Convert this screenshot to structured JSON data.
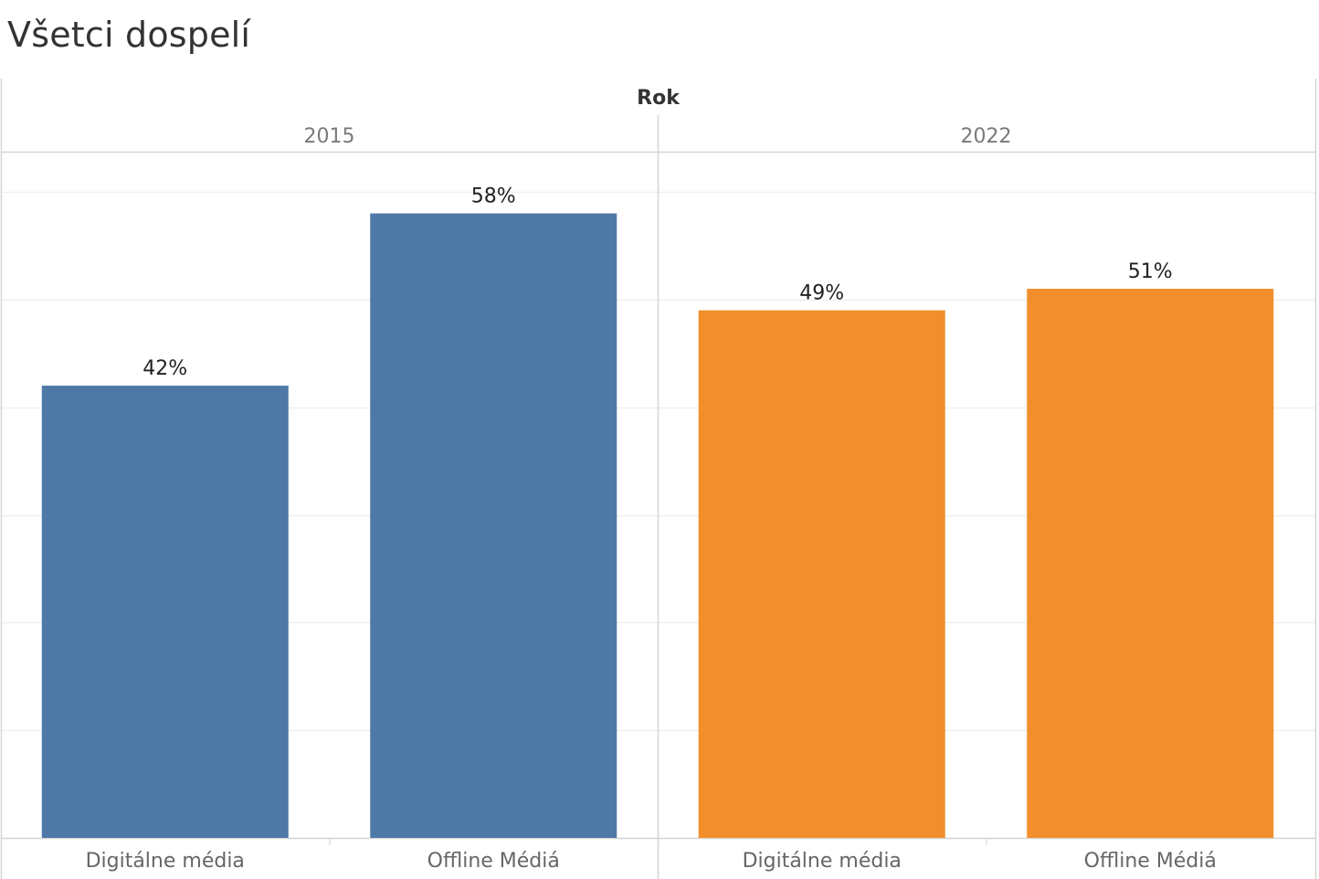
{
  "chart_data": {
    "type": "bar",
    "title": "Všetci dospelí",
    "facet_label": "Rok",
    "facets": [
      {
        "name": "2015",
        "color": "#4e79a7"
      },
      {
        "name": "2022",
        "color": "#f28e2b"
      }
    ],
    "categories": [
      "Digitálne média",
      "Offline Médiá"
    ],
    "series": [
      {
        "facet": "2015",
        "values": [
          42,
          58
        ]
      },
      {
        "facet": "2022",
        "values": [
          49,
          51
        ]
      }
    ],
    "value_labels": [
      [
        "42%",
        "58%"
      ],
      [
        "49%",
        "51%"
      ]
    ],
    "ylim": [
      0,
      60
    ],
    "grid": true,
    "y_axis_visible": false,
    "colors": {
      "grid": "#efefef",
      "border": "#d4d4d4",
      "header_text": "#7a7a7a",
      "facet_label_text": "#333333",
      "tick_text": "#666666",
      "value_text": "#222222"
    }
  }
}
